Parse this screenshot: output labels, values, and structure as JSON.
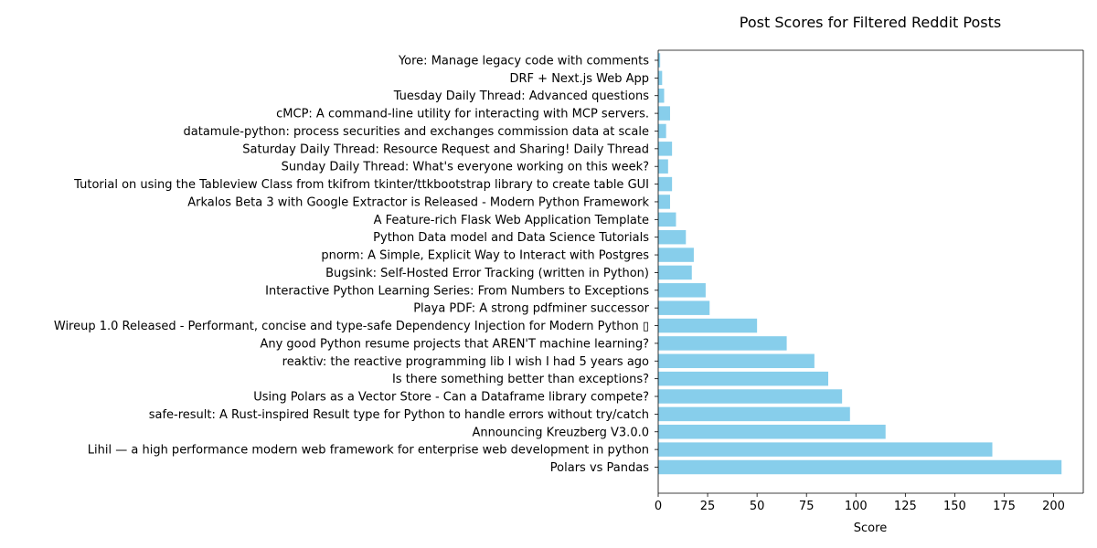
{
  "chart_data": {
    "type": "bar",
    "orientation": "horizontal",
    "title": "Post Scores for Filtered Reddit Posts",
    "xlabel": "Score",
    "ylabel": "",
    "xlim": [
      0,
      215
    ],
    "xticks": [
      0,
      25,
      50,
      75,
      100,
      125,
      150,
      175,
      200
    ],
    "grid": false,
    "bar_color": "#87ceeb",
    "categories": [
      "Polars vs Pandas",
      "Lihil — a high performance modern web framework for enterprise web development in python",
      "Announcing Kreuzberg V3.0.0",
      "safe-result: A Rust-inspired Result type for Python to handle errors without try/catch",
      "Using Polars as a Vector Store - Can a Dataframe library compete?",
      "Is there something better than exceptions?",
      "reaktiv: the reactive programming lib I wish I had 5 years ago",
      "Any good Python resume projects that AREN'T machine learning?",
      "Wireup 1.0 Released - Performant, concise and type-safe Dependency Injection for Modern Python ▯",
      "Playa PDF: A strong pdfminer successor",
      "Interactive Python Learning Series: From Numbers to Exceptions",
      "Bugsink: Self-Hosted Error Tracking (written in Python)",
      "pnorm: A Simple, Explicit Way to Interact with Postgres",
      "Python Data model and Data Science Tutorials",
      "A Feature-rich Flask Web Application Template",
      "Arkalos Beta 3 with Google Extractor is Released - Modern Python Framework",
      "Tutorial on using the Tableview Class from tkifrom tkinter/ttkbootstrap library to create table GUI",
      "Sunday Daily Thread: What's everyone working on this week?",
      "Saturday Daily Thread: Resource Request and Sharing! Daily Thread",
      "datamule-python: process securities and exchanges commission data at scale",
      "cMCP: A command-line utility for interacting with MCP servers.",
      "Tuesday Daily Thread: Advanced questions",
      "DRF + Next.js Web App",
      "Yore: Manage legacy code with comments"
    ],
    "values": [
      204,
      169,
      115,
      97,
      93,
      86,
      79,
      65,
      50,
      26,
      24,
      17,
      18,
      14,
      9,
      6,
      7,
      5,
      7,
      4,
      6,
      3,
      2,
      1
    ]
  }
}
